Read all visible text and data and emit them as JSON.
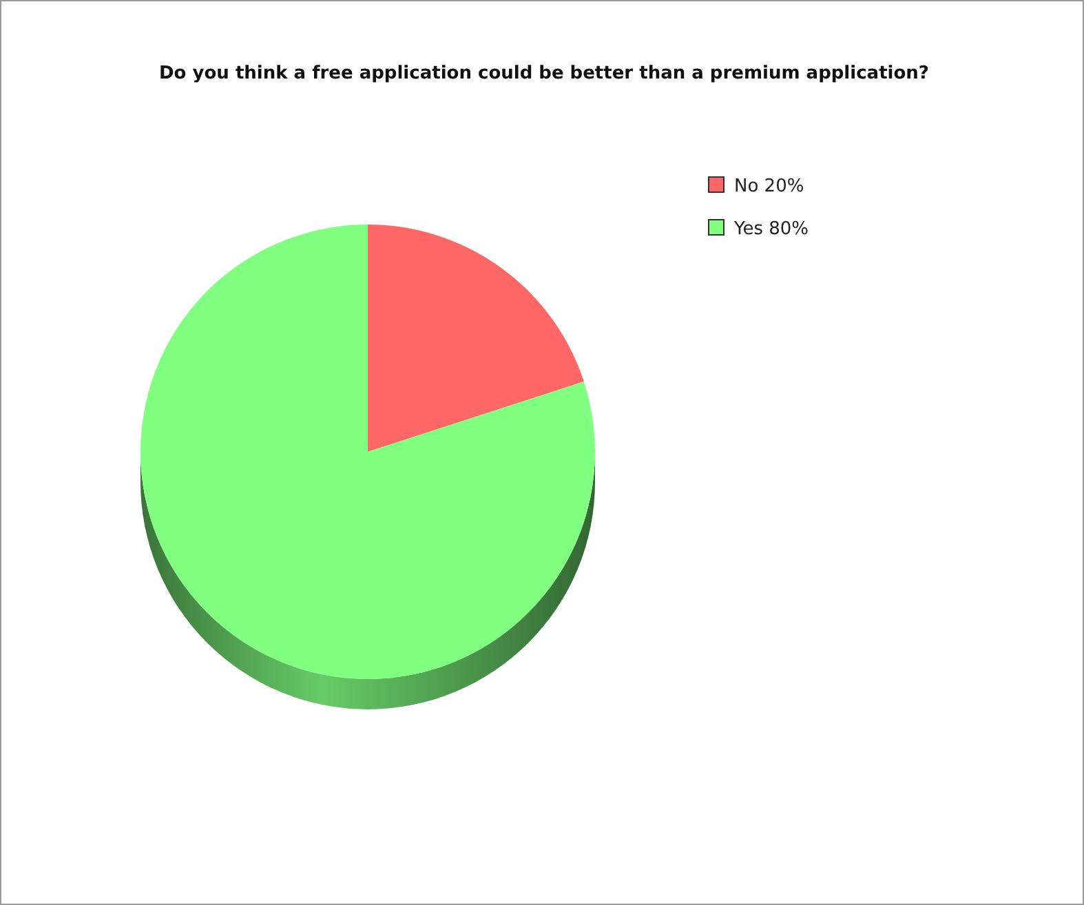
{
  "chart_data": {
    "type": "pie",
    "title": "Do you think a free application could be better than a premium application?",
    "categories": [
      "No 20%",
      "Yes 80%"
    ],
    "values": [
      20,
      80
    ],
    "colors": [
      "#ff6666",
      "#80ff80"
    ],
    "legend": "top right"
  }
}
